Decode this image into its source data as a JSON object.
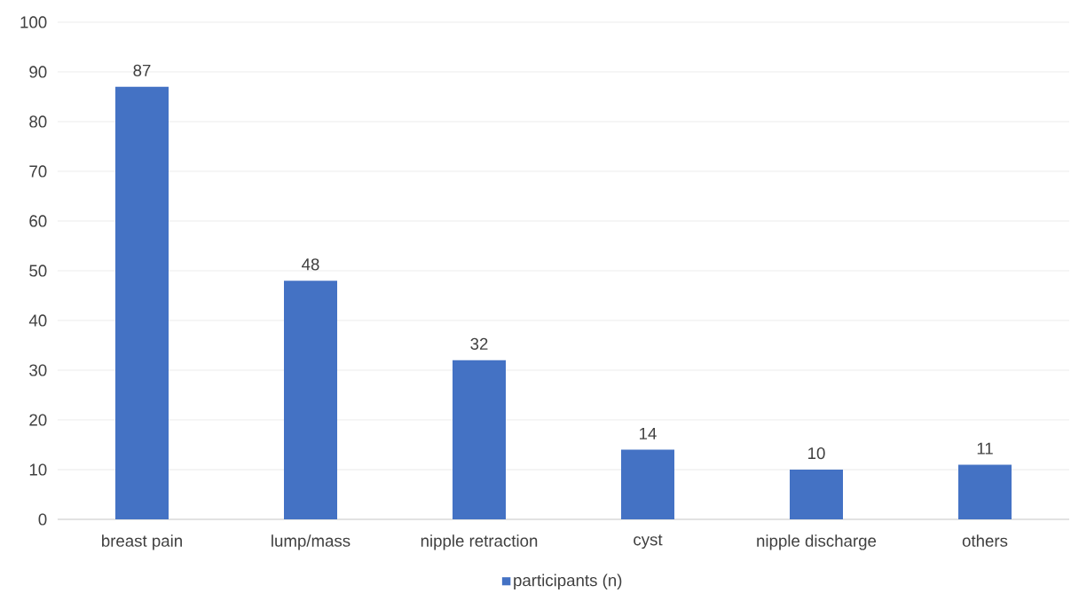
{
  "chart_data": {
    "type": "bar",
    "categories": [
      "breast pain",
      "lump/mass",
      "nipple retraction",
      "cyst",
      "nipple discharge",
      "others"
    ],
    "series": [
      {
        "name": "participants (n)",
        "color": "#4472c4",
        "values": [
          87,
          48,
          32,
          14,
          10,
          11
        ]
      }
    ],
    "ylim": [
      0,
      100
    ],
    "yticks": [
      0,
      10,
      20,
      30,
      40,
      50,
      60,
      70,
      80,
      90,
      100
    ],
    "grid": "y",
    "legend": "bottom",
    "data_labels": true
  }
}
